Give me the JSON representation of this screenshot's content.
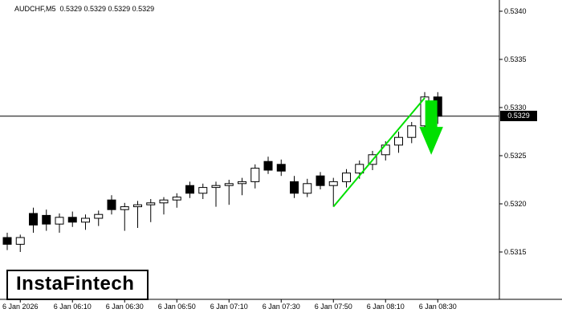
{
  "header": {
    "title": "AUDCHF,M5  0.5329 0.5329 0.5329 0.5329"
  },
  "logo": {
    "text": "InstaFintech"
  },
  "price_tag": {
    "value": "0.5329"
  },
  "colors": {
    "background": "#ffffff",
    "bull_fill": "#ffffff",
    "bear_fill": "#000000",
    "outline": "#000000",
    "signal": "#00e000",
    "axis": "#000000",
    "tag_bg": "#000000",
    "tag_text": "#ffffff"
  },
  "chart_data": {
    "type": "candlestick",
    "symbol": "AUDCHF",
    "timeframe": "M5",
    "ohlc_header": {
      "open": "0.5329",
      "high": "0.5329",
      "low": "0.5329",
      "close": "0.5329"
    },
    "ylim": [
      0.5315,
      0.534
    ],
    "y_ticks": [
      "0.5340",
      "0.5335",
      "0.5330",
      "0.5325",
      "0.5320",
      "0.5315"
    ],
    "x_ticks": [
      {
        "label": "6 Jan 2026",
        "index": 1
      },
      {
        "label": "6 Jan 06:10",
        "index": 5
      },
      {
        "label": "6 Jan 06:30",
        "index": 9
      },
      {
        "label": "6 Jan 06:50",
        "index": 13
      },
      {
        "label": "6 Jan 07:10",
        "index": 17
      },
      {
        "label": "6 Jan 07:30",
        "index": 21
      },
      {
        "label": "6 Jan 07:50",
        "index": 25
      },
      {
        "label": "6 Jan 08:10",
        "index": 29
      },
      {
        "label": "6 Jan 08:30",
        "index": 33
      }
    ],
    "bid_price": 0.53291,
    "candles": [
      [
        "05:45",
        0.53165,
        0.5317,
        0.53152,
        0.53158
      ],
      [
        "05:50",
        0.53158,
        0.53168,
        0.5315,
        0.53165
      ],
      [
        "05:55",
        0.5319,
        0.53196,
        0.5317,
        0.53178
      ],
      [
        "06:00",
        0.53188,
        0.53194,
        0.53172,
        0.53179
      ],
      [
        "06:05",
        0.53179,
        0.5319,
        0.5317,
        0.53186
      ],
      [
        "06:10",
        0.53186,
        0.53192,
        0.53176,
        0.53181
      ],
      [
        "06:15",
        0.53181,
        0.53189,
        0.53173,
        0.53185
      ],
      [
        "06:20",
        0.53185,
        0.53193,
        0.53177,
        0.53189
      ],
      [
        "06:25",
        0.53204,
        0.53209,
        0.53189,
        0.53194
      ],
      [
        "06:30",
        0.53194,
        0.53201,
        0.53172,
        0.53197
      ],
      [
        "06:35",
        0.53197,
        0.53203,
        0.53175,
        0.53199
      ],
      [
        "06:40",
        0.53199,
        0.53205,
        0.53181,
        0.53201
      ],
      [
        "06:45",
        0.53201,
        0.53207,
        0.53189,
        0.53204
      ],
      [
        "06:50",
        0.53204,
        0.53211,
        0.53196,
        0.53207
      ],
      [
        "06:55",
        0.53219,
        0.53223,
        0.53206,
        0.53211
      ],
      [
        "07:00",
        0.53211,
        0.53221,
        0.53205,
        0.53217
      ],
      [
        "07:05",
        0.53217,
        0.53223,
        0.53197,
        0.53219
      ],
      [
        "07:10",
        0.53219,
        0.53225,
        0.53199,
        0.53221
      ],
      [
        "07:15",
        0.53221,
        0.53227,
        0.53209,
        0.53223
      ],
      [
        "07:20",
        0.53223,
        0.53241,
        0.53216,
        0.53237
      ],
      [
        "07:25",
        0.53244,
        0.53249,
        0.53231,
        0.53235
      ],
      [
        "07:30",
        0.53241,
        0.53246,
        0.53229,
        0.53234
      ],
      [
        "07:35",
        0.53223,
        0.53229,
        0.53206,
        0.53211
      ],
      [
        "07:40",
        0.53211,
        0.53226,
        0.53207,
        0.53221
      ],
      [
        "07:45",
        0.53229,
        0.53233,
        0.53215,
        0.53219
      ],
      [
        "07:50",
        0.53219,
        0.53227,
        0.53197,
        0.53223
      ],
      [
        "07:55",
        0.53223,
        0.53236,
        0.53217,
        0.53232
      ],
      [
        "08:00",
        0.53232,
        0.53245,
        0.53226,
        0.53241
      ],
      [
        "08:05",
        0.53241,
        0.53255,
        0.53235,
        0.53251
      ],
      [
        "08:10",
        0.53251,
        0.53265,
        0.53245,
        0.53261
      ],
      [
        "08:15",
        0.53261,
        0.53275,
        0.53253,
        0.53269
      ],
      [
        "08:20",
        0.53269,
        0.53285,
        0.53263,
        0.53281
      ],
      [
        "08:25",
        0.53281,
        0.53316,
        0.53275,
        0.53311
      ],
      [
        "08:30",
        0.53311,
        0.53316,
        0.53283,
        0.53291
      ]
    ],
    "trendline": {
      "from": {
        "index": 25,
        "price": 0.53197
      },
      "to": {
        "index": 32,
        "price": 0.5331
      }
    },
    "arrow": {
      "index": 32.5,
      "price_top": 0.53307,
      "price_tip": 0.53252,
      "direction": "down"
    },
    "grid": false,
    "legend": false
  }
}
